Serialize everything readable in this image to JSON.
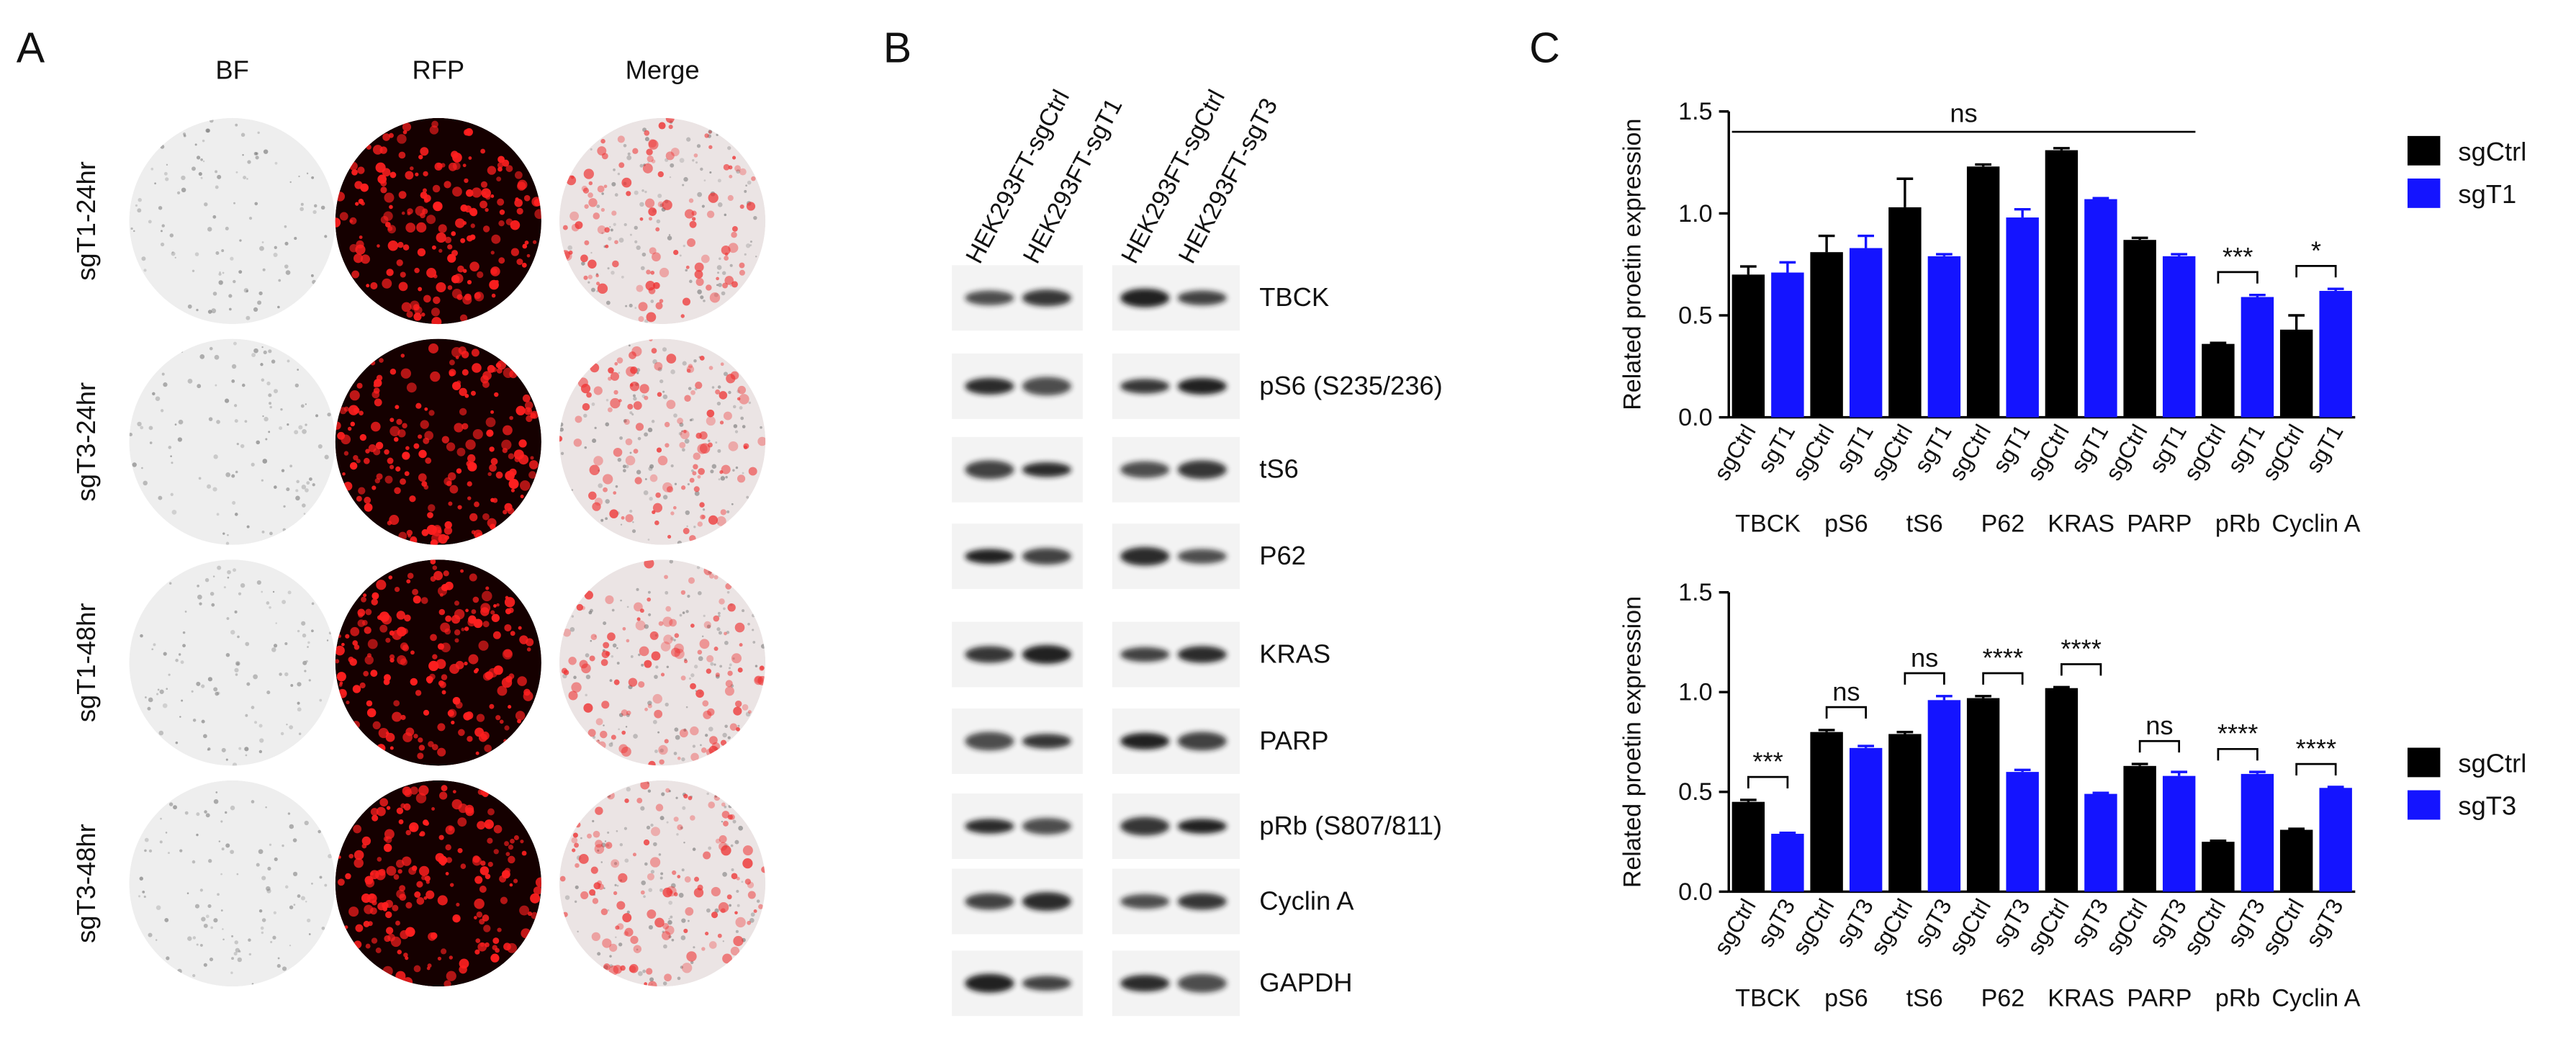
{
  "panel_a": {
    "label": "A",
    "columns": [
      "BF",
      "RFP",
      "Merge"
    ],
    "rows": [
      "sgT1-24hr",
      "sgT3-24hr",
      "sgT1-48hr",
      "sgT3-48hr"
    ]
  },
  "panel_b": {
    "label": "B",
    "lanes": [
      "HEK293FT-sgCtrl",
      "HEK293FT-sgT1",
      "HEK293FT-sgCtrl",
      "HEK293FT-sgT3"
    ],
    "proteins": [
      "TBCK",
      "pS6 (S235/236)",
      "tS6",
      "P62",
      "KRAS",
      "PARP",
      "pRb (S807/811)",
      "Cyclin A",
      "GAPDH"
    ]
  },
  "panel_c": {
    "label": "C"
  },
  "chart_data": [
    {
      "type": "bar",
      "y_label": "Related proetin expression",
      "categories": [
        "TBCK",
        "pS6",
        "tS6",
        "P62",
        "KRAS",
        "PARP",
        "pRb",
        "Cyclin A"
      ],
      "series": [
        {
          "name": "sgCtrl",
          "color": "#000000",
          "values": [
            0.7,
            0.81,
            1.03,
            1.23,
            1.31,
            0.87,
            0.36,
            0.43
          ],
          "errors": [
            0.04,
            0.08,
            0.14,
            0.01,
            0.01,
            0.01,
            0.005,
            0.07
          ]
        },
        {
          "name": "sgT1",
          "color": "#1414ff",
          "values": [
            0.71,
            0.83,
            0.79,
            0.98,
            1.07,
            0.79,
            0.59,
            0.62
          ],
          "errors": [
            0.05,
            0.06,
            0.01,
            0.04,
            0.005,
            0.01,
            0.01,
            0.01
          ]
        }
      ],
      "ylim": [
        0,
        1.5
      ],
      "yticks": [
        {
          "value": 0,
          "label": "0.0"
        },
        {
          "value": 0.5,
          "label": "0.5"
        },
        {
          "value": 1,
          "label": "1.0"
        },
        {
          "value": 1.5,
          "label": "1.5"
        }
      ],
      "annotations": [
        {
          "text": "ns",
          "categories": [
            "TBCK",
            "PARP"
          ]
        },
        {
          "text": "***",
          "categories": [
            "pRb"
          ]
        },
        {
          "text": "*",
          "categories": [
            "Cyclin A"
          ]
        }
      ],
      "legend": "right"
    },
    {
      "type": "bar",
      "y_label": "Related proetin expression",
      "categories": [
        "TBCK",
        "pS6",
        "tS6",
        "P62",
        "KRAS",
        "PARP",
        "pRb",
        "Cyclin A"
      ],
      "series": [
        {
          "name": "sgCtrl",
          "color": "#000000",
          "values": [
            0.45,
            0.8,
            0.79,
            0.97,
            1.02,
            0.63,
            0.25,
            0.31
          ],
          "errors": [
            0.01,
            0.01,
            0.01,
            0.01,
            0.005,
            0.01,
            0.005,
            0.005
          ]
        },
        {
          "name": "sgT3",
          "color": "#1414ff",
          "values": [
            0.29,
            0.72,
            0.96,
            0.6,
            0.49,
            0.58,
            0.59,
            0.52
          ],
          "errors": [
            0.005,
            0.01,
            0.02,
            0.01,
            0.005,
            0.02,
            0.01,
            0.005
          ]
        }
      ],
      "ylim": [
        0,
        1.5
      ],
      "yticks": [
        {
          "value": 0,
          "label": "0.0"
        },
        {
          "value": 0.5,
          "label": "0.5"
        },
        {
          "value": 1,
          "label": "1.0"
        },
        {
          "value": 1.5,
          "label": "1.5"
        }
      ],
      "annotations": [
        {
          "text": "***",
          "categories": [
            "TBCK"
          ]
        },
        {
          "text": "ns",
          "categories": [
            "pS6"
          ]
        },
        {
          "text": "ns",
          "categories": [
            "tS6"
          ]
        },
        {
          "text": "****",
          "categories": [
            "P62"
          ]
        },
        {
          "text": "****",
          "categories": [
            "KRAS"
          ]
        },
        {
          "text": "ns",
          "categories": [
            "PARP"
          ]
        },
        {
          "text": "****",
          "categories": [
            "pRb"
          ]
        },
        {
          "text": "****",
          "categories": [
            "Cyclin A"
          ]
        }
      ],
      "legend": "right"
    }
  ]
}
